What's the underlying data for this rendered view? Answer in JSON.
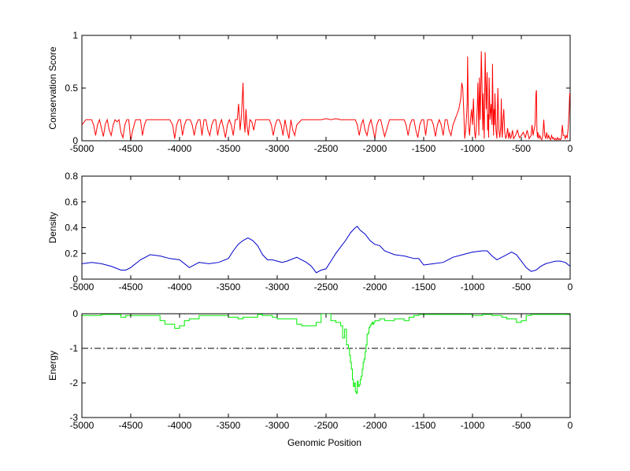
{
  "figure": {
    "xlabel": "Genomic Position"
  },
  "chart_data": [
    {
      "type": "line",
      "ylabel": "Conservation Score",
      "xlim": [
        -5000,
        0
      ],
      "ylim": [
        0,
        1
      ],
      "x_ticks": [
        "-5000",
        "-4500",
        "-4000",
        "-3500",
        "-3000",
        "-2500",
        "-2000",
        "-1500",
        "-1000",
        "-500",
        "0"
      ],
      "y_ticks": [
        "0",
        "0.5",
        "1"
      ],
      "color": "#ff0000",
      "series": [
        {
          "x": [
            -5000,
            -4960,
            -4930,
            -4900,
            -4880,
            -4860,
            -4840,
            -4820,
            -4800,
            -4780,
            -4760,
            -4740,
            -4720,
            -4700,
            -4680,
            -4660,
            -4640,
            -4620,
            -4600,
            -4580,
            -4560,
            -4540,
            -4520,
            -4500,
            -4480,
            -4450,
            -4420,
            -4400,
            -4380,
            -4360,
            -4340,
            -4320,
            -4300,
            -4270,
            -4240,
            -4200,
            -4150,
            -4100,
            -4070,
            -4050,
            -4030,
            -4010,
            -3990,
            -3970,
            -3950,
            -3930,
            -3910,
            -3890,
            -3870,
            -3850,
            -3830,
            -3810,
            -3790,
            -3770,
            -3750,
            -3730,
            -3710,
            -3690,
            -3670,
            -3650,
            -3630,
            -3610,
            -3590,
            -3570,
            -3550,
            -3530,
            -3510,
            -3490,
            -3470,
            -3450,
            -3430,
            -3410,
            -3395,
            -3380,
            -3365,
            -3350,
            -3340,
            -3330,
            -3320,
            -3310,
            -3295,
            -3280,
            -3260,
            -3240,
            -3220,
            -3200,
            -3180,
            -3160,
            -3140,
            -3120,
            -3100,
            -3080,
            -3060,
            -3040,
            -3020,
            -3000,
            -2980,
            -2960,
            -2940,
            -2920,
            -2900,
            -2880,
            -2860,
            -2840,
            -2820,
            -2800,
            -2750,
            -2700,
            -2650,
            -2600,
            -2550,
            -2500,
            -2450,
            -2400,
            -2350,
            -2300,
            -2250,
            -2200,
            -2180,
            -2160,
            -2140,
            -2120,
            -2100,
            -2080,
            -2060,
            -2040,
            -2020,
            -2000,
            -1980,
            -1960,
            -1940,
            -1920,
            -1900,
            -1850,
            -1800,
            -1750,
            -1720,
            -1700,
            -1680,
            -1660,
            -1640,
            -1620,
            -1600,
            -1580,
            -1560,
            -1540,
            -1520,
            -1500,
            -1480,
            -1460,
            -1440,
            -1420,
            -1400,
            -1380,
            -1360,
            -1340,
            -1320,
            -1300,
            -1280,
            -1260,
            -1240,
            -1220,
            -1200,
            -1180,
            -1160,
            -1140,
            -1120,
            -1110,
            -1100,
            -1090,
            -1080,
            -1070,
            -1060,
            -1055,
            -1050,
            -1045,
            -1040,
            -1030,
            -1020,
            -1010,
            -1000,
            -990,
            -980,
            -970,
            -960,
            -950,
            -945,
            -940,
            -935,
            -930,
            -920,
            -910,
            -900,
            -895,
            -890,
            -885,
            -880,
            -870,
            -860,
            -850,
            -845,
            -840,
            -835,
            -830,
            -820,
            -810,
            -800,
            -795,
            -790,
            -785,
            -780,
            -775,
            -770,
            -760,
            -750,
            -740,
            -730,
            -720,
            -710,
            -705,
            -700,
            -695,
            -690,
            -680,
            -670,
            -660,
            -650,
            -640,
            -630,
            -620,
            -610,
            -600,
            -590,
            -580,
            -560,
            -540,
            -520,
            -500,
            -480,
            -460,
            -440,
            -420,
            -400,
            -390,
            -380,
            -370,
            -360,
            -350,
            -345,
            -340,
            -335,
            -330,
            -320,
            -310,
            -300,
            -290,
            -280,
            -270,
            -260,
            -250,
            -240,
            -230,
            -220,
            -210,
            -200,
            -190,
            -180,
            -170,
            -160,
            -150,
            -140,
            -130,
            -120,
            -110,
            -100,
            -90,
            -80,
            -70,
            -60,
            -50,
            -40,
            -30,
            -20,
            -10,
            -5,
            0
          ],
          "y": [
            0.15,
            0.2,
            0.2,
            0.2,
            0.15,
            0.05,
            0.15,
            0.2,
            0.12,
            0.04,
            0.16,
            0.2,
            0.1,
            0.05,
            0.15,
            0.2,
            0.18,
            0.2,
            0.08,
            0.03,
            0.15,
            0.2,
            0.2,
            0.0,
            0.1,
            0.2,
            0.2,
            0.2,
            0.05,
            0.15,
            0.2,
            0.2,
            0.2,
            0.2,
            0.2,
            0.2,
            0.2,
            0.2,
            0.15,
            0.02,
            0.15,
            0.2,
            0.2,
            0.05,
            0.15,
            0.2,
            0.2,
            0.2,
            0.15,
            0.05,
            0.15,
            0.2,
            0.2,
            0.05,
            0.2,
            0.2,
            0.1,
            0.05,
            0.15,
            0.2,
            0.2,
            0.05,
            0.15,
            0.2,
            0.12,
            0.03,
            0.15,
            0.2,
            0.15,
            0.05,
            0.2,
            0.2,
            0.35,
            0.1,
            0.25,
            0.55,
            0.2,
            0.08,
            0.3,
            0.15,
            0.05,
            0.2,
            0.18,
            0.1,
            0.2,
            0.2,
            0.2,
            0.2,
            0.2,
            0.2,
            0.2,
            0.2,
            0.15,
            0.05,
            0.15,
            0.2,
            0.2,
            0.15,
            0.05,
            0.2,
            0.1,
            0.02,
            0.2,
            0.1,
            0.05,
            0.15,
            0.2,
            0.2,
            0.2,
            0.2,
            0.2,
            0.21,
            0.2,
            0.21,
            0.2,
            0.2,
            0.2,
            0.2,
            0.15,
            0.05,
            0.15,
            0.2,
            0.1,
            0.05,
            0.15,
            0.2,
            0.12,
            0.02,
            0.15,
            0.2,
            0.2,
            0.12,
            0.04,
            0.2,
            0.2,
            0.2,
            0.2,
            0.2,
            0.15,
            0.05,
            0.15,
            0.2,
            0.2,
            0.1,
            0.03,
            0.15,
            0.2,
            0.2,
            0.05,
            0.2,
            0.2,
            0.2,
            0.15,
            0.04,
            0.15,
            0.2,
            0.15,
            0.05,
            0.2,
            0.2,
            0.1,
            0.05,
            0.15,
            0.2,
            0.25,
            0.3,
            0.4,
            0.55,
            0.5,
            0.3,
            0.02,
            0.1,
            0.25,
            0.35,
            0.8,
            0.45,
            0.15,
            0.05,
            0.2,
            0.3,
            0.15,
            0.4,
            0.1,
            0.02,
            0.15,
            0.35,
            0.55,
            0.3,
            0.05,
            0.6,
            0.2,
            0.85,
            0.4,
            0.1,
            0.45,
            0.2,
            0.02,
            0.84,
            0.3,
            0.65,
            0.1,
            0.25,
            0.03,
            0.6,
            0.2,
            0.35,
            0.15,
            0.73,
            0.35,
            0.05,
            0.3,
            0.15,
            0.45,
            0.1,
            0.02,
            0.5,
            0.1,
            0.03,
            0.15,
            0.4,
            0.1,
            0.03,
            0.15,
            0.3,
            0.08,
            0.02,
            0.05,
            0.12,
            0.02,
            0.08,
            0.02,
            0.05,
            0.1,
            0.02,
            0.05,
            0.1,
            0.03,
            0.05,
            0.08,
            0.03,
            0.1,
            0.02,
            0.05,
            0.15,
            0.05,
            0.1,
            0.15,
            0.45,
            0.48,
            0.1,
            0.03,
            0.08,
            0.02,
            0.05,
            0.02,
            0.01,
            0.05,
            0.2,
            0.05,
            0.02,
            0.08,
            0.02,
            0.05,
            0.02,
            0.01,
            0.05,
            0.02,
            0.03,
            0.01,
            0.02,
            0.01,
            0.03,
            0.01,
            0.02,
            0.01,
            0.02,
            0.15,
            0.05,
            0.05,
            0.02,
            0.05,
            0.03,
            0.12,
            0.3,
            0.45,
            0.42
          ]
        }
      ]
    },
    {
      "type": "line",
      "ylabel": "Density",
      "xlim": [
        -5000,
        0
      ],
      "ylim": [
        0,
        0.8
      ],
      "x_ticks": [
        "-5000",
        "-4500",
        "-4000",
        "-3500",
        "-3000",
        "-2500",
        "-2000",
        "-1500",
        "-1000",
        "-500",
        "0"
      ],
      "y_ticks": [
        "0",
        "0.2",
        "0.4",
        "0.6",
        "0.8"
      ],
      "color": "#0000cc",
      "series": [
        {
          "x": [
            -5000,
            -4900,
            -4800,
            -4700,
            -4600,
            -4550,
            -4500,
            -4400,
            -4300,
            -4200,
            -4100,
            -4000,
            -3900,
            -3800,
            -3700,
            -3600,
            -3500,
            -3450,
            -3400,
            -3350,
            -3300,
            -3250,
            -3200,
            -3150,
            -3100,
            -3050,
            -3000,
            -2950,
            -2900,
            -2800,
            -2700,
            -2650,
            -2600,
            -2550,
            -2500,
            -2450,
            -2400,
            -2350,
            -2300,
            -2250,
            -2200,
            -2180,
            -2150,
            -2100,
            -2050,
            -2000,
            -1950,
            -1900,
            -1800,
            -1700,
            -1600,
            -1550,
            -1500,
            -1400,
            -1300,
            -1200,
            -1100,
            -1000,
            -900,
            -850,
            -800,
            -750,
            -700,
            -650,
            -600,
            -550,
            -500,
            -450,
            -400,
            -350,
            -300,
            -250,
            -200,
            -150,
            -100,
            -50,
            0
          ],
          "y": [
            0.12,
            0.13,
            0.12,
            0.1,
            0.07,
            0.07,
            0.09,
            0.15,
            0.19,
            0.18,
            0.16,
            0.15,
            0.09,
            0.13,
            0.12,
            0.13,
            0.16,
            0.22,
            0.27,
            0.3,
            0.32,
            0.3,
            0.26,
            0.19,
            0.15,
            0.15,
            0.14,
            0.13,
            0.14,
            0.17,
            0.13,
            0.1,
            0.05,
            0.07,
            0.08,
            0.14,
            0.2,
            0.25,
            0.3,
            0.36,
            0.4,
            0.41,
            0.38,
            0.35,
            0.3,
            0.27,
            0.26,
            0.22,
            0.19,
            0.18,
            0.16,
            0.16,
            0.11,
            0.12,
            0.13,
            0.17,
            0.19,
            0.21,
            0.22,
            0.22,
            0.18,
            0.15,
            0.17,
            0.19,
            0.21,
            0.19,
            0.14,
            0.09,
            0.06,
            0.07,
            0.1,
            0.12,
            0.13,
            0.14,
            0.14,
            0.13,
            0.1
          ]
        }
      ]
    },
    {
      "type": "line",
      "ylabel": "Energy",
      "xlim": [
        -5000,
        0
      ],
      "ylim": [
        -3,
        0
      ],
      "x_ticks": [
        "-5000",
        "-4500",
        "-4000",
        "-3500",
        "-3000",
        "-2500",
        "-2000",
        "-1500",
        "-1000",
        "-500",
        "0"
      ],
      "y_ticks": [
        "-3",
        "-2",
        "-1",
        "0"
      ],
      "color": "#00ee00",
      "step": true,
      "threshold": -1,
      "series": [
        {
          "x": [
            -5000,
            -4800,
            -4600,
            -4550,
            -4400,
            -4200,
            -4150,
            -4050,
            -4000,
            -3950,
            -3900,
            -3850,
            -3800,
            -3700,
            -3500,
            -3400,
            -3350,
            -3200,
            -3150,
            -3050,
            -3000,
            -2950,
            -2800,
            -2750,
            -2600,
            -2550,
            -2450,
            -2400,
            -2350,
            -2330,
            -2310,
            -2290,
            -2270,
            -2260,
            -2250,
            -2240,
            -2230,
            -2220,
            -2210,
            -2200,
            -2190,
            -2180,
            -2170,
            -2160,
            -2150,
            -2140,
            -2130,
            -2120,
            -2110,
            -2100,
            -2090,
            -2080,
            -2070,
            -2060,
            -2050,
            -2040,
            -2030,
            -2020,
            -2010,
            -2000,
            -1950,
            -1900,
            -1800,
            -1700,
            -1650,
            -1600,
            -1550,
            -1500,
            -1400,
            -1300,
            -1200,
            -1100,
            -1000,
            -900,
            -800,
            -700,
            -650,
            -600,
            -550,
            -500,
            -450,
            -400,
            -350,
            -300,
            -200,
            -100,
            0
          ],
          "y": [
            -0.05,
            -0.02,
            -0.1,
            -0.05,
            -0.05,
            -0.2,
            -0.3,
            -0.42,
            -0.35,
            -0.2,
            -0.15,
            -0.15,
            -0.05,
            -0.05,
            -0.1,
            -0.15,
            -0.1,
            -0.02,
            -0.05,
            -0.1,
            -0.15,
            -0.15,
            -0.3,
            -0.35,
            -0.25,
            0.0,
            -0.2,
            -0.25,
            -0.35,
            -0.7,
            -0.45,
            -0.9,
            -1.0,
            -1.2,
            -1.4,
            -1.6,
            -1.9,
            -2.1,
            -2.0,
            -2.25,
            -2.3,
            -1.95,
            -2.1,
            -2.05,
            -1.9,
            -1.8,
            -1.6,
            -1.4,
            -1.3,
            -1.1,
            -0.9,
            -0.6,
            -0.55,
            -0.4,
            -0.35,
            -0.3,
            -0.25,
            -0.3,
            -0.25,
            -0.2,
            -0.15,
            -0.2,
            -0.15,
            -0.2,
            -0.1,
            -0.05,
            -0.02,
            -0.02,
            -0.02,
            -0.02,
            -0.02,
            -0.02,
            -0.05,
            -0.02,
            -0.05,
            -0.1,
            -0.15,
            -0.15,
            -0.25,
            -0.2,
            -0.05,
            -0.02,
            -0.02,
            -0.02,
            -0.02,
            -0.02,
            -0.02
          ]
        }
      ]
    }
  ]
}
